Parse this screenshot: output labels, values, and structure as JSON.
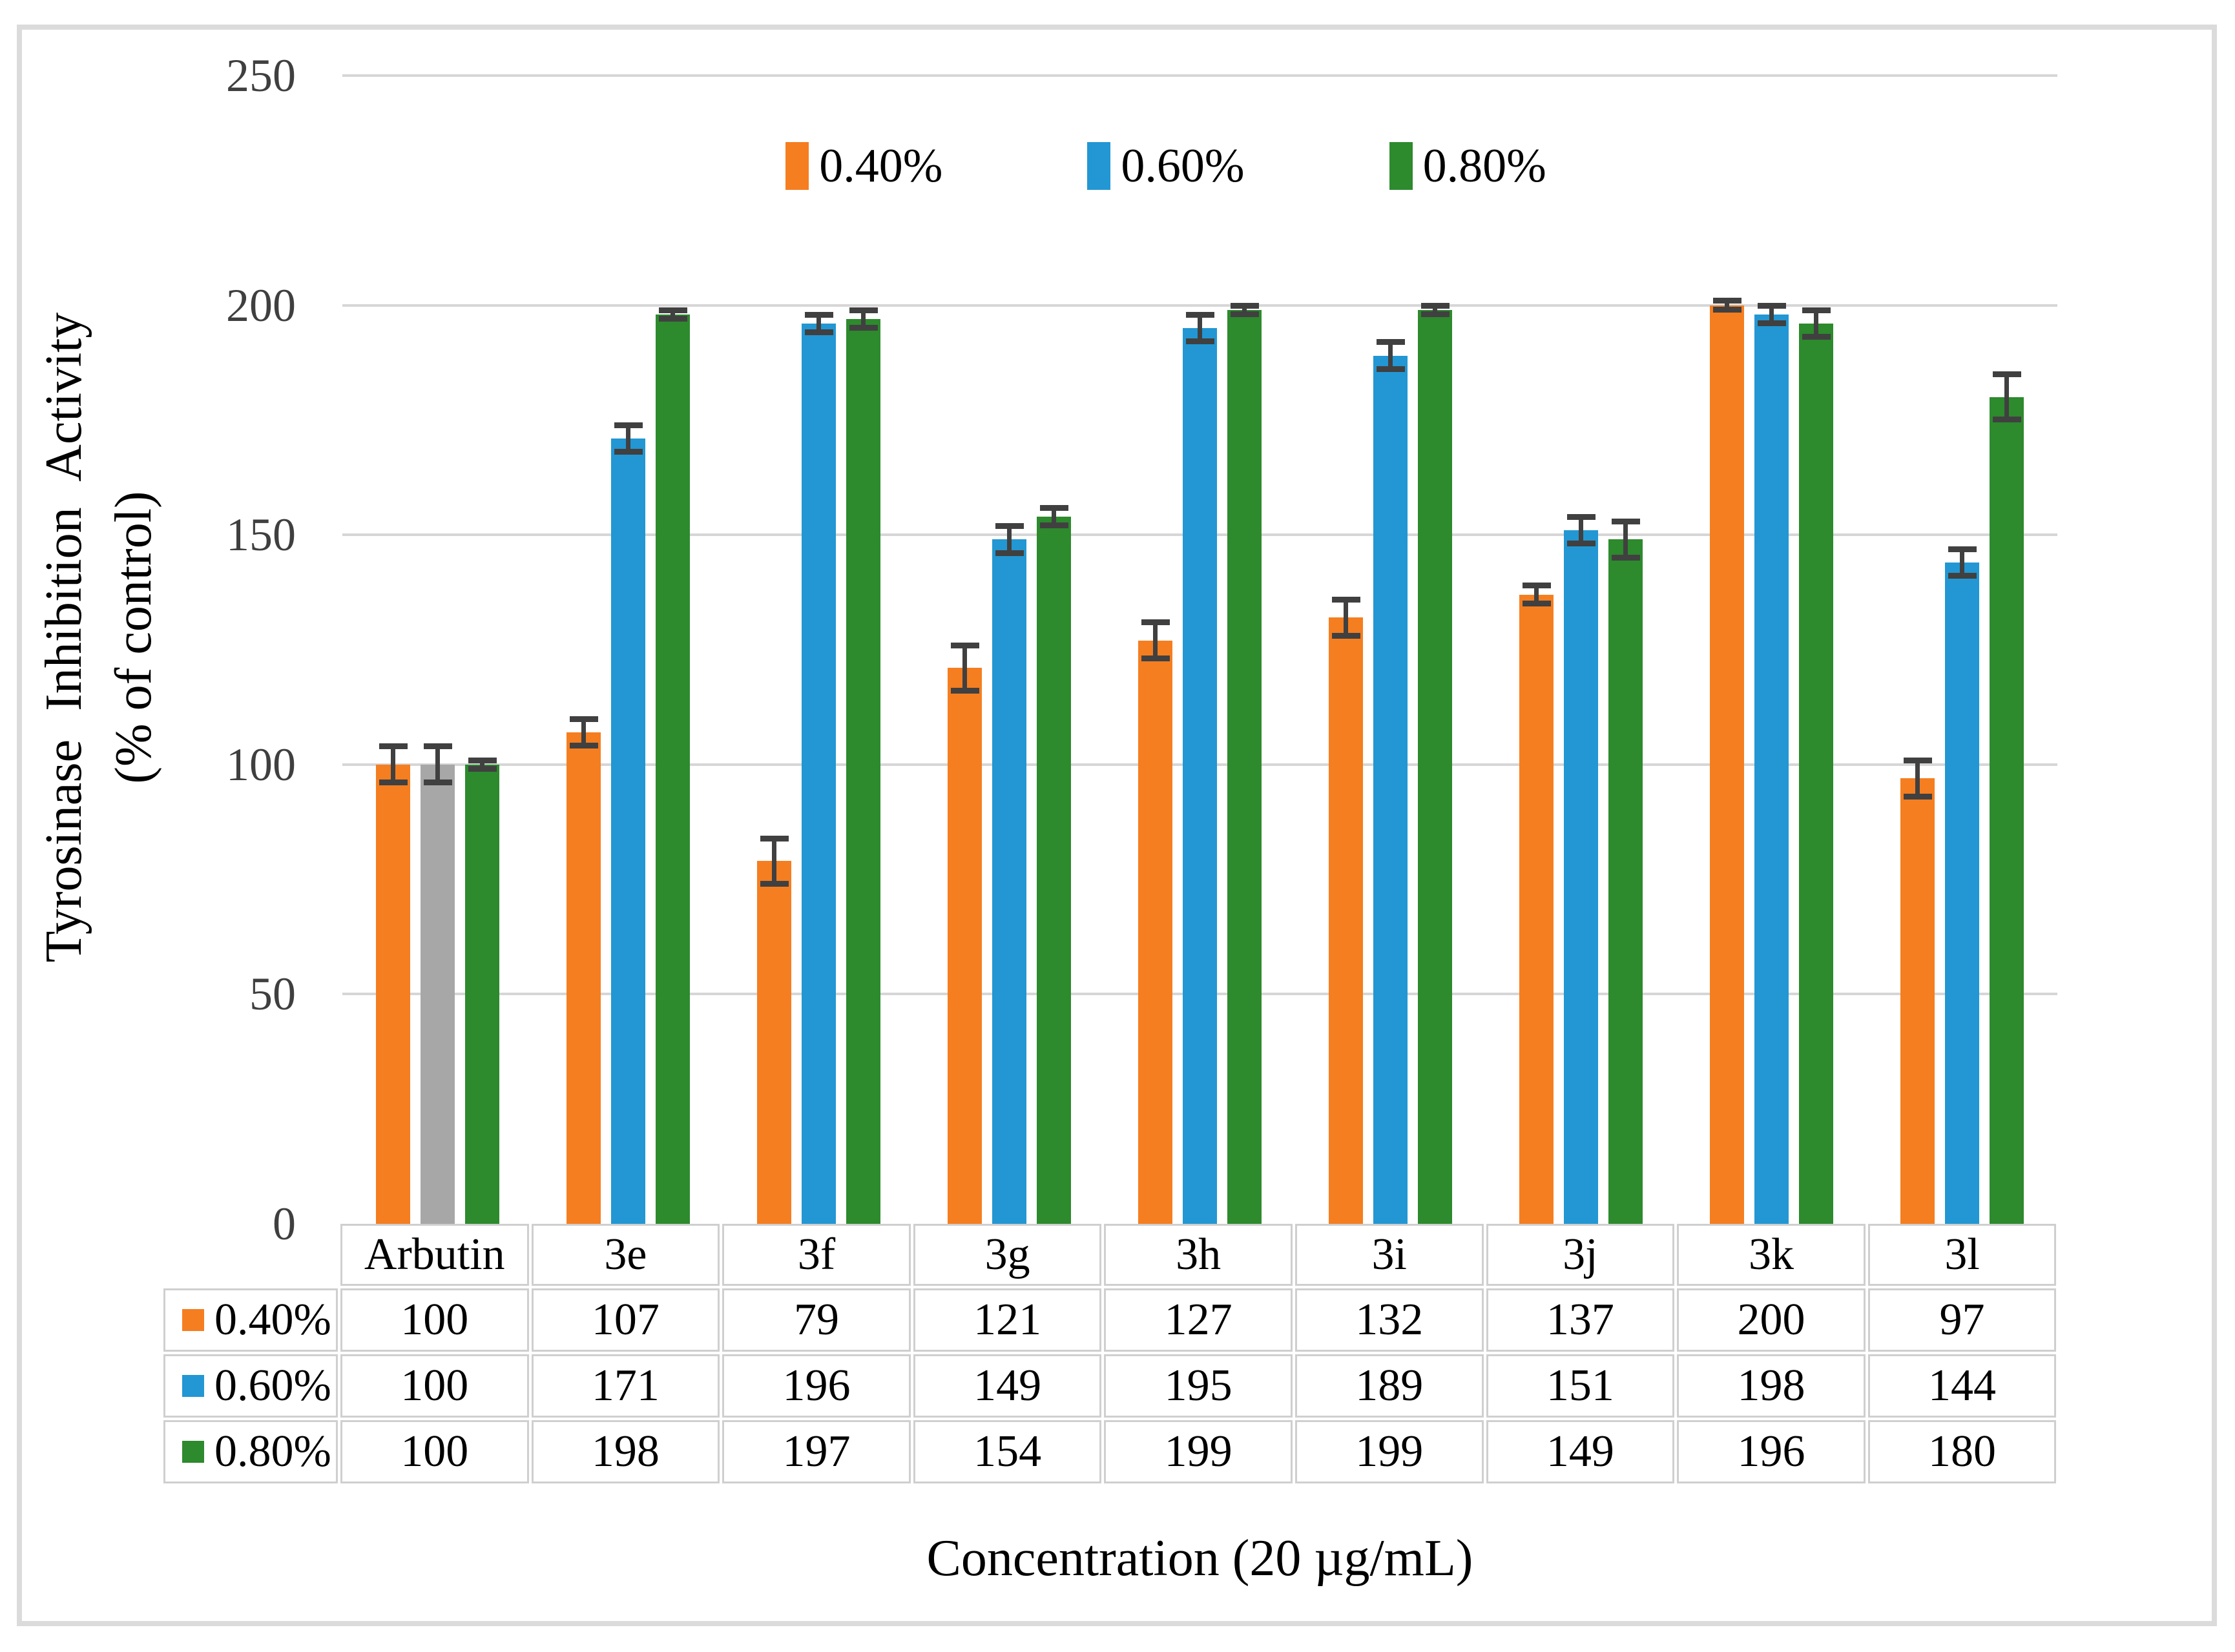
{
  "figure": {
    "background": "#ffffff",
    "border_color": "#dbdbdb"
  },
  "chart_data": {
    "type": "bar",
    "title": "",
    "categories": [
      "Arbutin",
      "3e",
      "3f",
      "3g",
      "3h",
      "3i",
      "3j",
      "3k",
      "3l"
    ],
    "series": [
      {
        "name": "0.40%",
        "color": "#f57e20",
        "values": [
          100,
          107,
          79,
          121,
          127,
          132,
          137,
          200,
          97
        ],
        "errors": [
          4,
          3,
          5,
          5,
          4,
          4,
          2,
          1,
          4
        ]
      },
      {
        "name": "0.60%",
        "color": "#2297d3",
        "values": [
          100,
          171,
          196,
          149,
          195,
          189,
          151,
          198,
          144
        ],
        "errors": [
          4,
          3,
          2,
          3,
          3,
          3,
          3,
          2,
          3
        ]
      },
      {
        "name": "0.80%",
        "color": "#2d8a2d",
        "values": [
          100,
          198,
          197,
          154,
          199,
          199,
          149,
          196,
          180
        ],
        "errors": [
          1,
          1,
          2,
          2,
          1,
          1,
          4,
          3,
          5
        ]
      }
    ],
    "bar_color_overrides": [
      {
        "category": "Arbutin",
        "series": "0.60%",
        "color": "#a7a7a7"
      }
    ],
    "ylabel_line1": "Tyrosinase Inhibition Activity",
    "ylabel_line2": "(% of control)",
    "xlabel": "Concentration (20 µg/mL)",
    "yticks": [
      0,
      50,
      100,
      150,
      200,
      250
    ],
    "ytick_labels": [
      "0",
      "50",
      "100",
      "150",
      "200",
      "250"
    ],
    "ylim": [
      0,
      250
    ],
    "grid": true,
    "gridline_color": "#d6d6d6",
    "error_bar_color": "#404040",
    "legend_position": "top-center",
    "legend_entries": [
      "0.40%",
      "0.60%",
      "0.80%"
    ],
    "data_table_shown": true
  },
  "table": {
    "corner_blank": "",
    "column_headers": [
      "Arbutin",
      "3e",
      "3f",
      "3g",
      "3h",
      "3i",
      "3j",
      "3k",
      "3l"
    ],
    "row_labels": [
      "0.40%",
      "0.60%",
      "0.80%"
    ],
    "rows": [
      [
        100,
        107,
        79,
        121,
        127,
        132,
        137,
        200,
        97
      ],
      [
        100,
        171,
        196,
        149,
        195,
        189,
        151,
        198,
        144
      ],
      [
        100,
        198,
        197,
        154,
        199,
        199,
        149,
        196,
        180
      ]
    ]
  }
}
